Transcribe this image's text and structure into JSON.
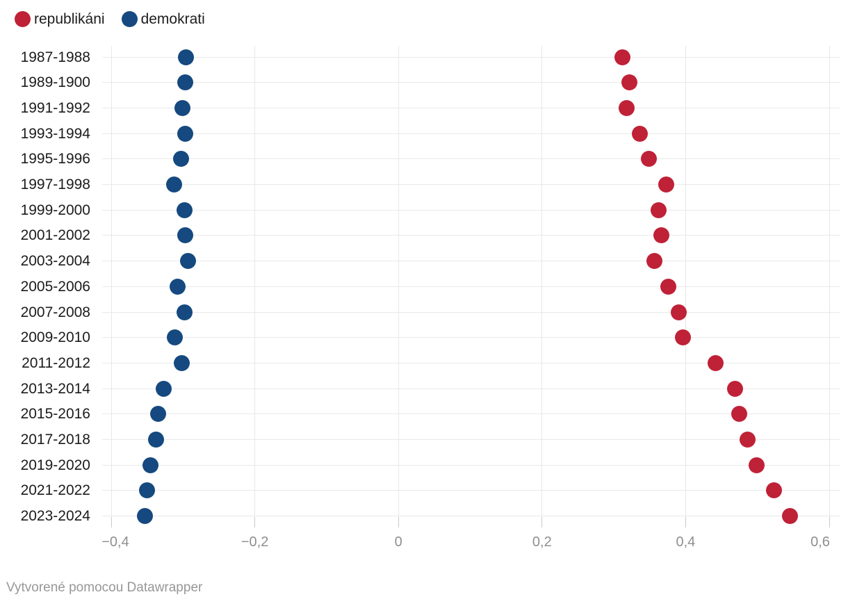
{
  "legend": {
    "items": [
      {
        "label": "republikáni",
        "color": "#bf2137"
      },
      {
        "label": "demokrati",
        "color": "#15497f"
      }
    ]
  },
  "footer": {
    "text": "Vytvorené pomocou Datawrapper"
  },
  "chart_data": {
    "type": "scatter",
    "subtype": "horizontal-dot-plot",
    "title": "",
    "xlabel": "",
    "ylabel": "",
    "grid": true,
    "legend_position": "top-left",
    "categories": [
      "1987-1988",
      "1989-1900",
      "1991-1992",
      "1993-1994",
      "1995-1996",
      "1997-1998",
      "1999-2000",
      "2001-2002",
      "2003-2004",
      "2005-2006",
      "2007-2008",
      "2009-2010",
      "2011-2012",
      "2013-2014",
      "2015-2016",
      "2017-2018",
      "2019-2020",
      "2021-2022",
      "2023-2024"
    ],
    "series": [
      {
        "name": "republikáni",
        "color": "#bf2137",
        "values": [
          0.312,
          0.322,
          0.318,
          0.336,
          0.349,
          0.373,
          0.362,
          0.366,
          0.357,
          0.376,
          0.39,
          0.396,
          0.442,
          0.469,
          0.475,
          0.486,
          0.499,
          0.523,
          0.545
        ]
      },
      {
        "name": "demokrati",
        "color": "#15497f",
        "values": [
          -0.296,
          -0.297,
          -0.301,
          -0.297,
          -0.303,
          -0.312,
          -0.298,
          -0.297,
          -0.293,
          -0.308,
          -0.298,
          -0.311,
          -0.302,
          -0.327,
          -0.335,
          -0.338,
          -0.345,
          -0.35,
          -0.353
        ]
      }
    ],
    "x_axis": {
      "min": -0.4,
      "max": 0.6,
      "ticks": [
        -0.4,
        -0.2,
        0,
        0.2,
        0.4,
        0.6
      ],
      "tick_labels": [
        "−0,4",
        "−0,2",
        "0",
        "0,2",
        "0,4",
        "0,6"
      ]
    }
  }
}
